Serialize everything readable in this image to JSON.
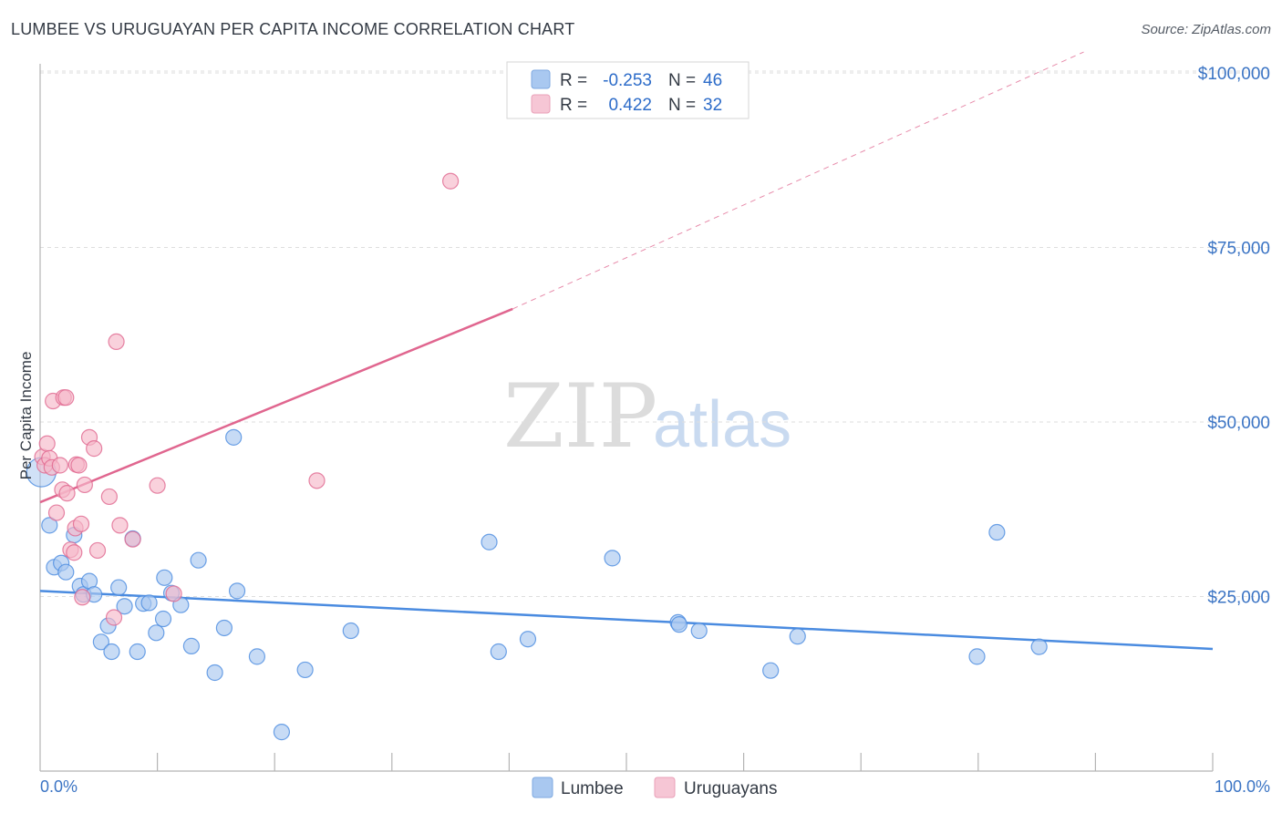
{
  "header": {
    "title": "LUMBEE VS URUGUAYAN PER CAPITA INCOME CORRELATION CHART",
    "source": "Source: ZipAtlas.com"
  },
  "watermark": {
    "zip": "ZIP",
    "atlas": "atlas"
  },
  "legend_top": [
    {
      "r_label": "R =",
      "r_value": "-0.253",
      "n_label": "N =",
      "n_value": "46",
      "color": "#a9c8f0"
    },
    {
      "r_label": "R =",
      "r_value": "0.422",
      "n_label": "N =",
      "n_value": "32",
      "color": "#f6b8ca"
    }
  ],
  "legend_bottom": [
    {
      "name": "Lumbee",
      "color": "#a9c8f0"
    },
    {
      "name": "Uruguayans",
      "color": "#f6b8ca"
    }
  ],
  "chart_data": {
    "type": "scatter",
    "title": "LUMBEE VS URUGUAYAN PER CAPITA INCOME CORRELATION CHART",
    "xlabel": "",
    "ylabel": "Per Capita Income",
    "xlim": [
      0,
      100
    ],
    "ylim": [
      0,
      103000
    ],
    "x_tick_labels": [
      "0.0%",
      "100.0%"
    ],
    "y_ticks": [
      25000,
      50000,
      75000,
      100000
    ],
    "y_tick_labels": [
      "$25,000",
      "$50,000",
      "$75,000",
      "$100,000"
    ],
    "grid": true,
    "legend_position": "top-center",
    "series": [
      {
        "name": "Lumbee",
        "color": "#4a8be0",
        "fill": "#a9c8f0",
        "trend": {
          "x": [
            0,
            100
          ],
          "y": [
            25800,
            17500
          ],
          "dashed_from": null
        },
        "points": [
          [
            0.1,
            42800
          ],
          [
            0.8,
            35200
          ],
          [
            1.2,
            29200
          ],
          [
            1.8,
            29800
          ],
          [
            2.2,
            28500
          ],
          [
            2.9,
            33800
          ],
          [
            3.4,
            26500
          ],
          [
            3.7,
            25300
          ],
          [
            4.2,
            27200
          ],
          [
            4.6,
            25300
          ],
          [
            5.2,
            18500
          ],
          [
            5.8,
            20800
          ],
          [
            6.1,
            17100
          ],
          [
            6.7,
            26300
          ],
          [
            7.2,
            23600
          ],
          [
            7.9,
            33300
          ],
          [
            8.3,
            17100
          ],
          [
            8.8,
            24000
          ],
          [
            9.3,
            24100
          ],
          [
            9.9,
            19800
          ],
          [
            10.5,
            21800
          ],
          [
            10.6,
            27700
          ],
          [
            11.2,
            25500
          ],
          [
            12.0,
            23800
          ],
          [
            12.9,
            17900
          ],
          [
            13.5,
            30200
          ],
          [
            14.9,
            14100
          ],
          [
            15.7,
            20500
          ],
          [
            16.5,
            47800
          ],
          [
            16.8,
            25800
          ],
          [
            18.5,
            16400
          ],
          [
            20.6,
            5600
          ],
          [
            22.6,
            14500
          ],
          [
            26.5,
            20100
          ],
          [
            38.3,
            32800
          ],
          [
            39.1,
            17100
          ],
          [
            41.6,
            18900
          ],
          [
            48.8,
            30500
          ],
          [
            54.4,
            21300
          ],
          [
            54.5,
            21000
          ],
          [
            56.2,
            20100
          ],
          [
            62.3,
            14400
          ],
          [
            64.6,
            19300
          ],
          [
            79.9,
            16400
          ],
          [
            81.6,
            34200
          ],
          [
            85.2,
            17800
          ]
        ]
      },
      {
        "name": "Uruguayans",
        "color": "#e0668f",
        "fill": "#f6b8ca",
        "trend": {
          "x": [
            0,
            40.3,
            89
          ],
          "y": [
            38500,
            66200,
            103000
          ],
          "dashed_from": 40.3
        },
        "points": [
          [
            0.2,
            45000
          ],
          [
            0.4,
            43800
          ],
          [
            0.6,
            46900
          ],
          [
            0.8,
            44800
          ],
          [
            1.0,
            43500
          ],
          [
            1.1,
            53000
          ],
          [
            1.4,
            37000
          ],
          [
            1.7,
            43800
          ],
          [
            1.9,
            40300
          ],
          [
            2.0,
            53500
          ],
          [
            2.2,
            53500
          ],
          [
            2.3,
            39800
          ],
          [
            2.6,
            31700
          ],
          [
            2.9,
            31300
          ],
          [
            3.0,
            34800
          ],
          [
            3.1,
            43900
          ],
          [
            3.3,
            43800
          ],
          [
            3.5,
            35400
          ],
          [
            3.6,
            24900
          ],
          [
            3.8,
            41000
          ],
          [
            4.2,
            47800
          ],
          [
            4.6,
            46200
          ],
          [
            4.9,
            31600
          ],
          [
            5.9,
            39300
          ],
          [
            6.3,
            22000
          ],
          [
            6.5,
            61500
          ],
          [
            6.8,
            35200
          ],
          [
            7.9,
            33200
          ],
          [
            10.0,
            40900
          ],
          [
            11.4,
            25400
          ],
          [
            23.6,
            41600
          ],
          [
            35.0,
            84500
          ]
        ]
      }
    ]
  }
}
